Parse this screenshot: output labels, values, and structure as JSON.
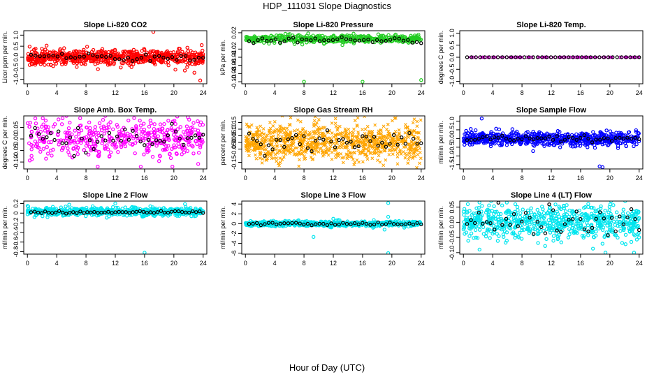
{
  "figure": {
    "title": "HDP_111031  Slope Diagnostics",
    "xlabel": "Hour of Day (UTC)"
  },
  "chart_data": [
    {
      "type": "scatter",
      "title": "Slope Li-820 CO2",
      "ylabel": "Licor ppm per min.",
      "color": "#ff0000",
      "marker": "circle",
      "xlim": [
        -0.5,
        24.5
      ],
      "ylim": [
        -1.2,
        1.2
      ],
      "yticks": [
        "-1.0",
        "-0.5",
        "0.0",
        "0.5",
        "1.0"
      ],
      "ytick_values": [
        -1,
        -0.5,
        0,
        0.5,
        1
      ],
      "xticks": [
        0,
        4,
        8,
        12,
        16,
        20,
        24
      ],
      "noise_sd": 0.16,
      "black_sd": 0.1,
      "n": 700,
      "nb": 40,
      "outliers": [
        [
          17.2,
          1.15
        ],
        [
          23.6,
          -1.05
        ],
        [
          0.3,
          0.48
        ],
        [
          23.8,
          0.55
        ],
        [
          22.8,
          -0.7
        ],
        [
          21.5,
          -0.6
        ]
      ]
    },
    {
      "type": "scatter",
      "title": "Slope Li-820 Pressure",
      "ylabel": "kPa per min.",
      "color": "#22cc22",
      "marker": "circle",
      "xlim": [
        -0.5,
        24.5
      ],
      "ylim": [
        -0.105,
        0.025
      ],
      "yticks": [
        "-0.10",
        "-0.06",
        "-0.02"
      ],
      "ytick_values": [
        -0.1,
        -0.06,
        -0.02
      ],
      "extra_ticks": [
        "0.02",
        "-0.04",
        "-0.08"
      ],
      "extra_tick_values": [
        0.02,
        -0.04,
        -0.08
      ],
      "xticks": [
        0,
        4,
        8,
        12,
        16,
        20,
        24
      ],
      "noise_sd": 0.005,
      "black_sd": 0.003,
      "n": 500,
      "nb": 40,
      "center": 0.005,
      "black_center": 0.002,
      "outliers": [
        [
          8,
          -0.1
        ],
        [
          16,
          -0.1
        ],
        [
          24,
          -0.096
        ]
      ]
    },
    {
      "type": "scatter",
      "title": "Slope Li-820 Temp.",
      "ylabel": "degrees C per min.",
      "color": "#cc00cc",
      "marker": "x",
      "xlim": [
        -0.5,
        24.5
      ],
      "ylim": [
        -1.1,
        1.1
      ],
      "yticks": [
        "-1.0",
        "-0.5",
        "0.0",
        "0.5",
        "1.0"
      ],
      "ytick_values": [
        -1,
        -0.5,
        0,
        0.5,
        1
      ],
      "xticks": [
        0,
        4,
        8,
        12,
        16,
        20,
        24
      ],
      "noise_sd": 0.0,
      "black_sd": 0.0,
      "n": 100,
      "nb": 40,
      "outliers": []
    },
    {
      "type": "scatter",
      "title": "Slope Amb. Box Temp.",
      "ylabel": "degrees C per min.",
      "color": "#ff00ff",
      "marker": "circle",
      "xlim": [
        -0.5,
        24.5
      ],
      "ylim": [
        -0.13,
        0.1
      ],
      "yticks": [
        "-0.10",
        "-0.05",
        "0.00",
        "0.05"
      ],
      "ytick_values": [
        -0.1,
        -0.05,
        0,
        0.05
      ],
      "xticks": [
        0,
        4,
        8,
        12,
        16,
        20,
        24
      ],
      "noise_sd": 0.04,
      "black_sd": 0.03,
      "n": 450,
      "nb": 45,
      "outliers": [
        [
          4.8,
          0.09
        ],
        [
          7.2,
          0.09
        ],
        [
          16.8,
          0.08
        ],
        [
          19.8,
          -0.12
        ],
        [
          9.6,
          -0.12
        ]
      ]
    },
    {
      "type": "scatter",
      "title": "Slope Gas Stream RH",
      "ylabel": "percent per min.",
      "color": "#ffa500",
      "marker": "x",
      "xlim": [
        -0.5,
        24.5
      ],
      "ylim": [
        -0.2,
        0.2
      ],
      "yticks": [
        "-0.15",
        "-0.05",
        "0.00",
        "0.05",
        "0.10",
        "0.15"
      ],
      "ytick_values": [
        -0.15,
        -0.05,
        0,
        0.05,
        0.1,
        0.15
      ],
      "xticks": [
        0,
        4,
        8,
        12,
        16,
        20,
        24
      ],
      "noise_sd": 0.07,
      "black_sd": 0.04,
      "n": 900,
      "nb": 45,
      "outliers": [
        [
          12.3,
          0.18
        ],
        [
          7.3,
          -0.18
        ],
        [
          23.4,
          -0.19
        ]
      ]
    },
    {
      "type": "scatter",
      "title": "Slope Sample Flow",
      "ylabel": "ml/min per min.",
      "color": "#0000ff",
      "marker": "circle",
      "xlim": [
        -0.5,
        24.5
      ],
      "ylim": [
        -1.75,
        1.3
      ],
      "yticks": [
        "-1.5",
        "-1.0",
        "-0.5",
        "0.0",
        "0.5",
        "1.0"
      ],
      "ytick_values": [
        -1.5,
        -1,
        -0.5,
        0,
        0.5,
        1
      ],
      "xticks": [
        0,
        4,
        8,
        12,
        16,
        20,
        24
      ],
      "noise_sd": 0.2,
      "black_sd": 0.08,
      "n": 650,
      "nb": 45,
      "outliers": [
        [
          2.5,
          1.15
        ],
        [
          18.6,
          -1.6
        ],
        [
          19.0,
          -1.65
        ],
        [
          1.0,
          0.55
        ]
      ]
    },
    {
      "type": "scatter",
      "title": "Slope Line 2 Flow",
      "ylabel": "ml/min per min.",
      "color": "#00e5ee",
      "marker": "circle",
      "xlim": [
        -0.5,
        24.5
      ],
      "ylim": [
        -0.85,
        0.25
      ],
      "yticks": [
        "-0.8",
        "-0.6",
        "-0.4",
        "-0.2",
        "0",
        "0.2"
      ],
      "ytick_values": [
        -0.8,
        -0.6,
        -0.4,
        -0.2,
        0,
        0.2
      ],
      "xticks": [
        0,
        4,
        8,
        12,
        16,
        20,
        24
      ],
      "noise_sd": 0.04,
      "black_sd": 0.015,
      "n": 600,
      "nb": 50,
      "center": 0.03,
      "black_center": 0.02,
      "outliers": [
        [
          16,
          -0.82
        ],
        [
          12,
          0.2
        ]
      ]
    },
    {
      "type": "scatter",
      "title": "Slope Line 3 Flow",
      "ylabel": "ml/min per min.",
      "color": "#00e5ee",
      "marker": "circle",
      "xlim": [
        -0.5,
        24.5
      ],
      "ylim": [
        -6.2,
        4.6
      ],
      "yticks": [
        "-6",
        "-4",
        "-2",
        "0",
        "2",
        "4"
      ],
      "ytick_values": [
        -6,
        -4,
        -2,
        0,
        2,
        4
      ],
      "xticks": [
        0,
        4,
        8,
        12,
        16,
        20,
        24
      ],
      "noise_sd": 0.25,
      "black_sd": 0.2,
      "n": 650,
      "nb": 45,
      "outliers": [
        [
          19.5,
          4.2
        ],
        [
          19.5,
          -6.0
        ],
        [
          19.5,
          1.4
        ],
        [
          9.3,
          -2.7
        ],
        [
          12.0,
          1.0
        ],
        [
          19.0,
          -1.2
        ]
      ]
    },
    {
      "type": "scatter",
      "title": "Slope Line 4 (LT) Flow",
      "ylabel": "ml/min per min.",
      "color": "#00e5ee",
      "marker": "circle",
      "xlim": [
        -0.5,
        24.5
      ],
      "ylim": [
        -0.105,
        0.07
      ],
      "yticks": [
        "-0.10",
        "-0.05",
        "0.00",
        "0.05"
      ],
      "ytick_values": [
        -0.1,
        -0.05,
        0,
        0.05
      ],
      "xticks": [
        0,
        4,
        8,
        12,
        16,
        20,
        24
      ],
      "noise_sd": 0.028,
      "black_sd": 0.025,
      "n": 700,
      "nb": 45,
      "outliers": [
        [
          2.2,
          -0.09
        ],
        [
          23.3,
          -0.1
        ],
        [
          19.4,
          -0.1
        ],
        [
          0.6,
          0.06
        ]
      ]
    }
  ]
}
